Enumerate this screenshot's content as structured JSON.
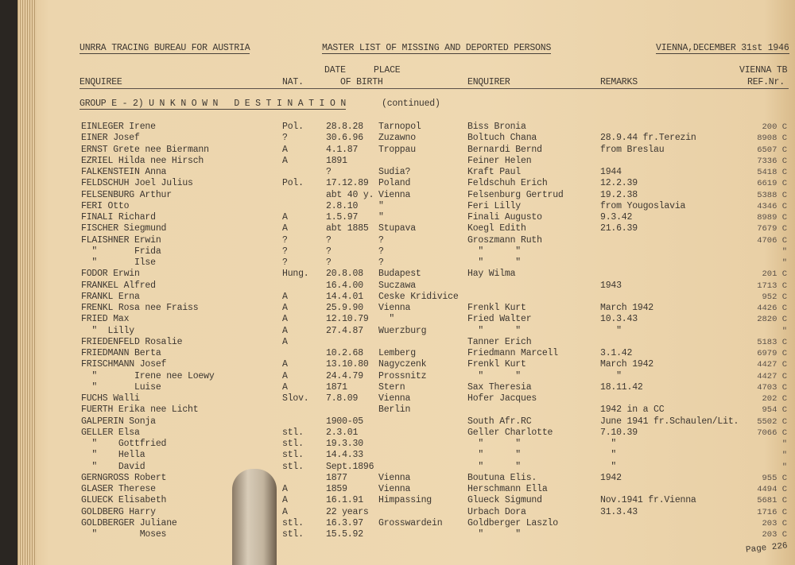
{
  "header": {
    "org": "UNRRA TRACING BUREAU FOR AUSTRIA",
    "title": "MASTER LIST OF MISSING AND DEPORTED PERSONS",
    "place_date": "VIENNA,DECEMBER 31st 1946"
  },
  "columns": {
    "enquiree": "ENQUIREE",
    "nat": "NAT.",
    "date": "DATE",
    "place": "PLACE",
    "of_birth": "OF BIRTH",
    "enquirer": "ENQUIRER",
    "remarks": "REMARKS",
    "vienna": "VIENNA TB",
    "ref": "REF.Nr."
  },
  "group_title": "GROUP E - 2) U N K N O W N   D E S T I N A T I O N",
  "group_note": "(continued)",
  "rows": [
    [
      "EINLEGER Irene",
      "Pol.",
      "28.8.28",
      "Tarnopol",
      "Biss Bronia",
      "",
      "200 C"
    ],
    [
      "EINER Josef",
      "?",
      "30.6.96",
      "Zuzawno",
      "Boltuch Chana",
      "28.9.44 fr.Terezin",
      "8908 C"
    ],
    [
      "ERNST Grete nee Biermann",
      "A",
      "4.1.87",
      "Troppau",
      "Bernardi Bernd",
      "from Breslau",
      "6507 C"
    ],
    [
      "EZRIEL Hilda nee Hirsch",
      "A",
      "1891",
      "",
      "Feiner Helen",
      "",
      "7336 C"
    ],
    [
      "FALKENSTEIN Anna",
      "",
      "?",
      "Sudia?",
      "Kraft Paul",
      "1944",
      "5418 C"
    ],
    [
      "FELDSCHUH Joel Julius",
      "Pol.",
      "17.12.89",
      "Poland",
      "Feldschuh Erich",
      "12.2.39",
      "6619 C"
    ],
    [
      "FELSENBURG Arthur",
      "",
      "abt 40 y.",
      "Vienna",
      "Felsenburg Gertrud",
      "19.2.38",
      "5388 C"
    ],
    [
      "FERI Otto",
      "",
      "2.8.10",
      "\"",
      "Feri Lilly",
      "from Yougoslavia",
      "4346 C"
    ],
    [
      "FINALI Richard",
      "A",
      "1.5.97",
      "\"",
      "Finali Augusto",
      "9.3.42",
      "8989 C"
    ],
    [
      "FISCHER Siegmund",
      "A",
      "abt 1885",
      "Stupava",
      "Koegl Edith",
      "21.6.39",
      "7679 C"
    ],
    [
      "FLAISHNER Erwin",
      "?",
      "?",
      "?",
      "Groszmann Ruth",
      "",
      "4706 C"
    ],
    [
      "  \"       Frida",
      "?",
      "?",
      "?",
      "  \"      \"",
      "",
      "\""
    ],
    [
      "  \"       Ilse",
      "?",
      "?",
      "?",
      "  \"      \"",
      "",
      "\""
    ],
    [
      "FODOR Erwin",
      "Hung.",
      "20.8.08",
      "Budapest",
      "Hay Wilma",
      "",
      "201 C"
    ],
    [
      "FRANKEL Alfred",
      "",
      "16.4.00",
      "Suczawa",
      "",
      "1943",
      "1713 C"
    ],
    [
      "FRANKL Erna",
      "A",
      "14.4.01",
      "Ceske Kridivice",
      "",
      "",
      "952 C"
    ],
    [
      "FRENKL Rosa nee Fraiss",
      "A",
      "25.9.90",
      "Vienna",
      "Frenkl Kurt",
      "March 1942",
      "4426 C"
    ],
    [
      "FRIED Max",
      "A",
      "12.10.79",
      "  \"",
      "Fried Walter",
      "10.3.43",
      "2820 C"
    ],
    [
      "  \"  Lilly",
      "A",
      "27.4.87",
      "Wuerzburg",
      "  \"      \"",
      "   \"",
      "\""
    ],
    [
      "FRIEDENFELD Rosalie",
      "A",
      "",
      "",
      "Tanner Erich",
      "",
      "5183 C"
    ],
    [
      "FRIEDMANN Berta",
      "",
      "10.2.68",
      "Lemberg",
      "Friedmann Marcell",
      "3.1.42",
      "6979 C"
    ],
    [
      "FRISCHMANN Josef",
      "A",
      "13.10.80",
      "Nagyczenk",
      "Frenkl Kurt",
      "March 1942",
      "4427 C"
    ],
    [
      "  \"       Irene nee Loewy",
      "A",
      "24.4.79",
      "Prossnitz",
      "  \"      \"",
      "   \"",
      "4427 C"
    ],
    [
      "  \"       Luise",
      "A",
      "1871",
      "Stern",
      "Sax Theresia",
      "18.11.42",
      "4703 C"
    ],
    [
      "FUCHS Walli",
      "Slov.",
      "7.8.09",
      "Vienna",
      "Hofer Jacques",
      "",
      "202 C"
    ],
    [
      "FUERTH Erika nee Licht",
      "",
      "",
      "Berlin",
      "",
      "1942 in a CC",
      "954 C"
    ],
    [
      "GALPERIN Sonja",
      "",
      "1900-05",
      "",
      "South Afr.RC",
      "June 1941 fr.Schaulen/Lit.",
      "5502 C"
    ],
    [
      "GELLER Elsa",
      "stl.",
      "2.3.01",
      "",
      "Geller Charlotte",
      "7.10.39",
      "7066 C"
    ],
    [
      "  \"    Gottfried",
      "stl.",
      "19.3.30",
      "",
      "  \"      \"",
      "  \"",
      "\""
    ],
    [
      "  \"    Hella",
      "stl.",
      "14.4.33",
      "",
      "  \"      \"",
      "  \"",
      "\""
    ],
    [
      "  \"    David",
      "stl.",
      "Sept.1896",
      "",
      "  \"      \"",
      "  \"",
      "\""
    ],
    [
      "GERNGROSS Robert",
      "",
      "1877",
      "Vienna",
      "Boutuna Elis.",
      "1942",
      "955 C"
    ],
    [
      "GLASER Therese",
      "A",
      "1859",
      "Vienna",
      "Herschmann Ella",
      "",
      "4494 C"
    ],
    [
      "GLUECK Elisabeth",
      "A",
      "16.1.91",
      "Himpassing",
      "Glueck Sigmund",
      "Nov.1941 fr.Vienna",
      "5681 C"
    ],
    [
      "GOLDBERG Harry",
      "A",
      "22 years",
      "",
      "Urbach Dora",
      "31.3.43",
      "1716 C"
    ],
    [
      "GOLDBERGER Juliane",
      "stl.",
      "16.3.97",
      "Grosswardein",
      "Goldberger Laszlo",
      "",
      "203 C"
    ],
    [
      "  \"        Moses",
      "stl.",
      "15.5.92",
      "",
      "  \"      \"",
      "",
      "203 C"
    ]
  ],
  "footer": {
    "page": "Page 226"
  },
  "colors": {
    "paper": "#eed8b1",
    "ink": "#3c3630",
    "spine": "#2a2622"
  }
}
